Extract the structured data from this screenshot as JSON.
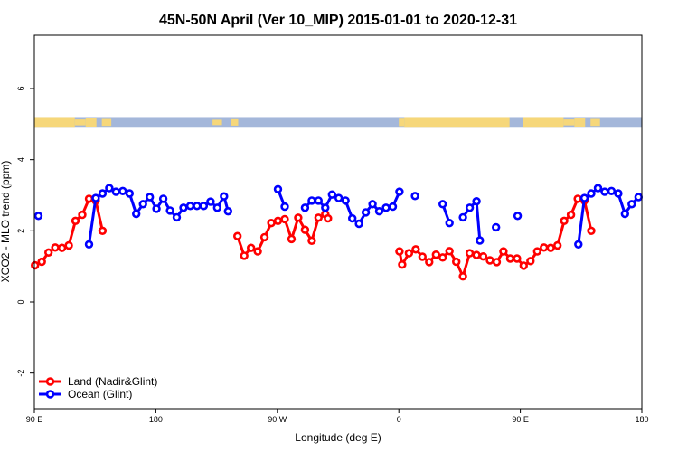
{
  "chart_data": {
    "type": "line",
    "title": "45N-50N April (Ver 10_MIP)   2015-01-01 to 2020-12-31",
    "xlabel": "Longitude (deg E)",
    "ylabel": "XCO2 - MLO trend (ppm)",
    "xlim": [
      90,
      540
    ],
    "ylim": [
      -3,
      7.5
    ],
    "x_ticks": [
      {
        "value": 90,
        "label": "90 E"
      },
      {
        "value": 180,
        "label": "180"
      },
      {
        "value": 270,
        "label": "90 W"
      },
      {
        "value": 360,
        "label": "0"
      },
      {
        "value": 450,
        "label": "90 E"
      },
      {
        "value": 540,
        "label": "180"
      }
    ],
    "y_ticks": [
      {
        "value": -2,
        "label": "-2"
      },
      {
        "value": 0,
        "label": "0"
      },
      {
        "value": 2,
        "label": "2"
      },
      {
        "value": 4,
        "label": "4"
      },
      {
        "value": 6,
        "label": "6"
      }
    ],
    "grid": false,
    "legend_position": "bottom-left",
    "map_band": {
      "y_range": [
        4.9,
        5.2
      ],
      "land_color": "#F6D77A",
      "ocean_color": "#A4B7DA"
    },
    "series": [
      {
        "name": "Land (Nadir&Glint)",
        "color": "#FF0000",
        "segments": [
          [
            [
              90.5,
              1.03
            ],
            [
              95.5,
              1.13
            ],
            [
              100.5,
              1.39
            ],
            [
              105.5,
              1.53
            ],
            [
              110.5,
              1.52
            ],
            [
              115.5,
              1.59
            ],
            [
              120.5,
              2.28
            ],
            [
              125.5,
              2.45
            ],
            [
              130.5,
              2.9
            ],
            [
              135.5,
              2.85
            ],
            [
              140.5,
              2.0
            ]
          ],
          [
            [
              240.5,
              1.85
            ],
            [
              245.5,
              1.3
            ],
            [
              250.5,
              1.52
            ],
            [
              255.5,
              1.42
            ],
            [
              260.5,
              1.82
            ],
            [
              265.5,
              2.22
            ],
            [
              270.5,
              2.28
            ],
            [
              275.5,
              2.33
            ],
            [
              280.5,
              1.77
            ],
            [
              285.5,
              2.37
            ],
            [
              290.5,
              2.03
            ],
            [
              295.5,
              1.72
            ],
            [
              300.5,
              2.37
            ],
            [
              305.5,
              2.47
            ],
            [
              307.5,
              2.35
            ]
          ],
          [
            [
              360.5,
              1.42
            ],
            [
              362.5,
              1.05
            ],
            [
              367.5,
              1.37
            ],
            [
              372.5,
              1.48
            ],
            [
              377.5,
              1.27
            ],
            [
              382.5,
              1.12
            ],
            [
              387.5,
              1.33
            ],
            [
              392.5,
              1.25
            ],
            [
              397.5,
              1.43
            ],
            [
              402.5,
              1.13
            ],
            [
              407.5,
              0.72
            ],
            [
              412.5,
              1.37
            ],
            [
              417.5,
              1.32
            ],
            [
              422.5,
              1.28
            ],
            [
              427.5,
              1.17
            ],
            [
              432.5,
              1.12
            ],
            [
              437.5,
              1.42
            ],
            [
              442.5,
              1.22
            ],
            [
              447.5,
              1.22
            ],
            [
              452.5,
              1.02
            ],
            [
              457.5,
              1.15
            ],
            [
              462.5,
              1.42
            ],
            [
              467.5,
              1.53
            ],
            [
              472.5,
              1.52
            ],
            [
              477.5,
              1.59
            ],
            [
              482.5,
              2.28
            ],
            [
              487.5,
              2.45
            ],
            [
              492.5,
              2.9
            ],
            [
              497.5,
              2.85
            ],
            [
              502.5,
              2.0
            ]
          ]
        ]
      },
      {
        "name": "Ocean (Glint)",
        "color": "#0000FF",
        "segments": [
          [
            [
              93,
              2.42
            ]
          ],
          [
            [
              130.5,
              1.62
            ],
            [
              135.5,
              2.92
            ],
            [
              140.5,
              3.05
            ],
            [
              145.5,
              3.2
            ],
            [
              150.5,
              3.1
            ],
            [
              155.5,
              3.12
            ],
            [
              160.5,
              3.05
            ],
            [
              165.5,
              2.48
            ],
            [
              170.5,
              2.75
            ],
            [
              175.5,
              2.95
            ],
            [
              180.5,
              2.62
            ],
            [
              185.5,
              2.9
            ],
            [
              190.5,
              2.57
            ],
            [
              195.5,
              2.38
            ],
            [
              200.5,
              2.65
            ],
            [
              205.5,
              2.7
            ],
            [
              210.5,
              2.7
            ],
            [
              215.5,
              2.7
            ],
            [
              220.5,
              2.82
            ],
            [
              225.5,
              2.65
            ],
            [
              230.5,
              2.97
            ],
            [
              233.5,
              2.55
            ]
          ],
          [
            [
              270.5,
              3.17
            ],
            [
              275.5,
              2.68
            ]
          ],
          [
            [
              290.5,
              2.65
            ],
            [
              295.5,
              2.85
            ],
            [
              300.5,
              2.85
            ],
            [
              305.5,
              2.65
            ],
            [
              310.5,
              3.02
            ],
            [
              315.5,
              2.92
            ],
            [
              320.5,
              2.85
            ],
            [
              325.5,
              2.35
            ],
            [
              330.5,
              2.2
            ],
            [
              335.5,
              2.52
            ],
            [
              340.5,
              2.75
            ],
            [
              345.5,
              2.55
            ],
            [
              350.5,
              2.65
            ],
            [
              355.5,
              2.68
            ],
            [
              360.5,
              3.1
            ]
          ],
          [
            [
              372,
              2.98
            ]
          ],
          [
            [
              392.5,
              2.75
            ],
            [
              397.5,
              2.22
            ]
          ],
          [
            [
              407.5,
              2.38
            ],
            [
              412.5,
              2.65
            ],
            [
              417.5,
              2.83
            ],
            [
              420,
              1.73
            ]
          ],
          [
            [
              432,
              2.1
            ]
          ],
          [
            [
              448,
              2.42
            ]
          ],
          [
            [
              493,
              1.62
            ],
            [
              497.5,
              2.92
            ],
            [
              502.5,
              3.05
            ],
            [
              507.5,
              3.2
            ],
            [
              512.5,
              3.1
            ],
            [
              517.5,
              3.12
            ],
            [
              522.5,
              3.05
            ],
            [
              527.5,
              2.48
            ],
            [
              532.5,
              2.75
            ],
            [
              537.5,
              2.95
            ]
          ]
        ]
      }
    ]
  }
}
